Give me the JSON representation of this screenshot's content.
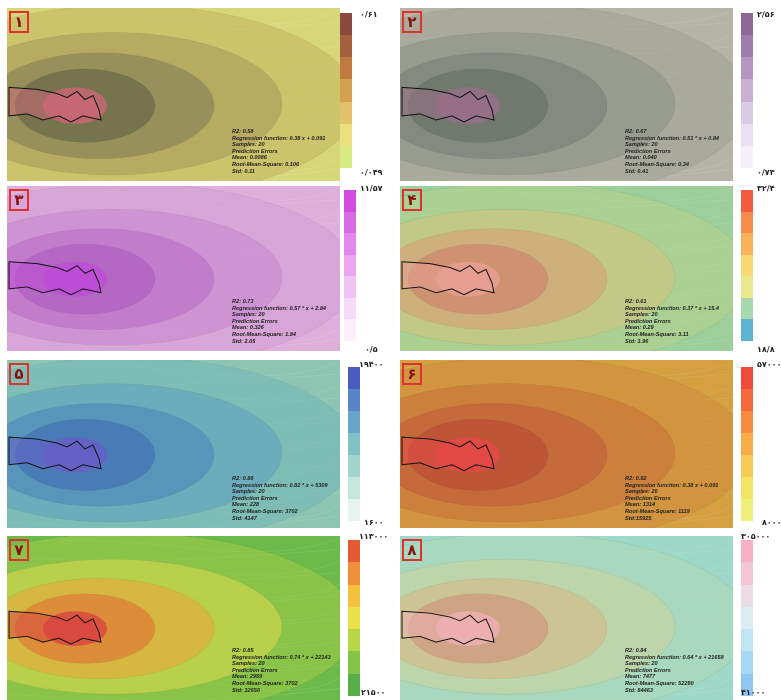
{
  "panels": [
    {
      "num": "۱",
      "r2": "R2: 0.58",
      "reg": "Regression function: 0.38 x + 0.091",
      "samples": "Samples: 20",
      "errors": "Prediction Errors",
      "mean": "Mean: 0.0086",
      "rms": "Root-Mean-Square: 0.106",
      "std": "Std: 0.11",
      "scale_max": "۰/۶۱",
      "scale_min": "۰/۰۴۹",
      "colors": {
        "bg": "#d7d77a",
        "layers": [
          "#c2b45e",
          "#a4975a",
          "#7f7a55",
          "#5a5c44"
        ],
        "core": "#d2667a",
        "scale": [
          "#8c4a3e",
          "#a5603e",
          "#c07a40",
          "#d6a052",
          "#e3c06a",
          "#ece07e",
          "#d9ea82"
        ]
      }
    },
    {
      "num": "۲",
      "r2": "R2: 0.67",
      "reg": "Regression function: 0.51 * x + 0.84",
      "samples": "Samples: 20",
      "errors": "Prediction Errors",
      "mean": "Mean: 0.040",
      "rms": "Root-Mean-Square: 0.34",
      "std": "Std: 0.41",
      "scale_max": "۲/۵۶",
      "scale_min": "۰/۷۳",
      "colors": {
        "bg": "#b5b4a6",
        "layers": [
          "#9fa294",
          "#8a8f84",
          "#747c72",
          "#626b62"
        ],
        "core": "#9b6d89",
        "scale": [
          "#8d6898",
          "#a07cae",
          "#b795c0",
          "#c9b0d2",
          "#dbcae3",
          "#e9dff0",
          "#f4eff8"
        ]
      }
    },
    {
      "num": "۳",
      "r2": "R2: 0.73",
      "reg": "Regression function: 0.57 * x + 2.84",
      "samples": "Samples: 20",
      "errors": "Prediction Errors",
      "mean": "Mean: 0.326",
      "rms": "Root-Mean-Square: 1.84",
      "std": "Std: 2.05",
      "scale_max": "۱۱/۵۷",
      "scale_min": "۰/۵",
      "colors": {
        "bg": "#ddb0dc",
        "layers": [
          "#d49cd6",
          "#c785cf",
          "#b96ac7",
          "#a955bd"
        ],
        "core": "#c04ad8",
        "scale": [
          "#d24ce0",
          "#db6ae6",
          "#e387ec",
          "#eba6f0",
          "#f1c2f4",
          "#f6dbf8",
          "#fbf0fb"
        ]
      }
    },
    {
      "num": "۴",
      "r2": "R2: 0.61",
      "reg": "Regression function: 0.37 * x + 15.4",
      "samples": "Samples: 20",
      "errors": "Prediction Errors",
      "mean": "Mean: 0.29",
      "rms": "Root-Mean-Square: 3.11",
      "std": "Std: 3.96",
      "scale_max": "۳۲/۴",
      "scale_min": "۱۸/۸",
      "colors": {
        "bg": "#9ccf9c",
        "layers": [
          "#b7d38a",
          "#d5c27c",
          "#d79a72",
          "#cf7a6a"
        ],
        "core": "#e8a096",
        "scale": [
          "#f05a3e",
          "#f58c4a",
          "#f8b25a",
          "#f9d772",
          "#e8e88c",
          "#a8d8b0",
          "#5cb4d2"
        ]
      }
    },
    {
      "num": "۵",
      "r2": "R2: 0.86",
      "reg": "Regression function: 0.82 * x + 5309",
      "samples": "Samples: 20",
      "errors": "Prediction Errors",
      "mean": "Mean: 228",
      "rms": "Root-Mean-Square: 3702",
      "std": "Std: 4147",
      "scale_max": "۱۹۴۰۰",
      "scale_min": "۱۶۰۰",
      "colors": {
        "bg": "#8cc6b2",
        "layers": [
          "#73b6b8",
          "#5c9ec0",
          "#4a84bc",
          "#3d68b2"
        ],
        "core": "#6a5cc8",
        "scale": [
          "#4b5cc0",
          "#5a84c8",
          "#68a6c8",
          "#80c2c6",
          "#a2d6cc",
          "#c6e6dc",
          "#e6f4f0"
        ]
      }
    },
    {
      "num": "۶",
      "r2": "R2: 0.92",
      "reg": "Regression function: 0.38 x + 0.091",
      "samples": "Samples: 20",
      "errors": "Prediction Errors",
      "mean": "Mean: 1314",
      "rms": "Root-Mean-Square: 1119",
      "std": "Std:15925",
      "scale_max": "۵۷۰۰۰",
      "scale_min": "۸۰۰۰",
      "colors": {
        "bg": "#d4a040",
        "layers": [
          "#cf8a3c",
          "#c8703a",
          "#c05838",
          "#b84434"
        ],
        "core": "#e84848",
        "scale": [
          "#f04a3a",
          "#f46a3c",
          "#f78c40",
          "#f9ad48",
          "#f8ca56",
          "#f4e466",
          "#eef07c"
        ]
      }
    },
    {
      "num": "۷",
      "r2": "R2: 0.85",
      "reg": "Regression function: 0.74 * x + 22143",
      "samples": "Samples: 20",
      "errors": "Prediction Errors",
      "mean": "Mean: 2959",
      "rms": "Root-Mean-Square: 3702",
      "std": "Std: 32656",
      "scale_max": "۱۱۳۰۰۰",
      "scale_min": "۲۱۵۰۰",
      "colors": {
        "bg": "#6cba4a",
        "layers": [
          "#a2cc48",
          "#dcd84a",
          "#f1a43c",
          "#e46a32"
        ],
        "core": "#d84040",
        "scale": [
          "#e45a34",
          "#f0903a",
          "#f5c040",
          "#eae04a",
          "#b8d648",
          "#84c448",
          "#56b04a"
        ]
      }
    },
    {
      "num": "۸",
      "r2": "R2: 0.84",
      "reg": "Regression function: 0.64 * x + 21658",
      "samples": "Samples: 20",
      "errors": "Prediction Errors",
      "mean": "Mean: 7477",
      "rms": "Root-Mean-Square: 52280",
      "std": "Std: 84463",
      "scale_max": "۳۰۵۰۰۰",
      "scale_min": "۴۱۰۰۰",
      "colors": {
        "bg": "#9ed8c8",
        "layers": [
          "#b0d8b4",
          "#cdd49a",
          "#d8b682",
          "#d08a78"
        ],
        "core": "#f2b0b8",
        "scale": [
          "#f6b0c4",
          "#f2c6d4",
          "#eadbe4",
          "#dcecf2",
          "#c0e6f6",
          "#a6d8f4",
          "#8ec6f0"
        ]
      }
    }
  ]
}
